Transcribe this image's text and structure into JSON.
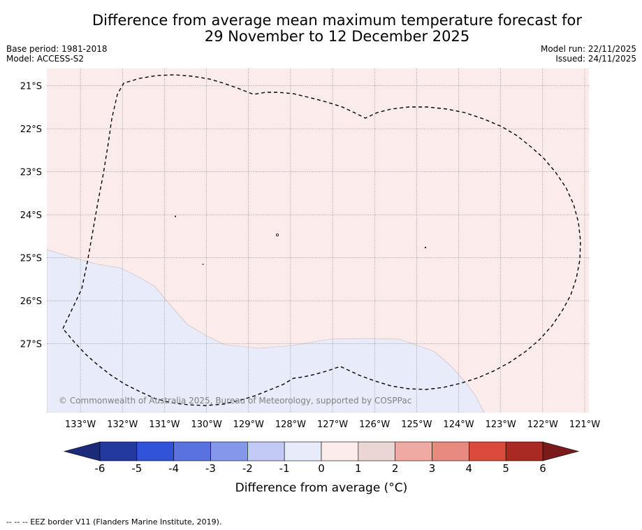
{
  "title": {
    "line1": "Difference from average mean maximum temperature forecast for",
    "line2": "29 November to 12 December 2025"
  },
  "meta": {
    "base_period": "Base period: 1981-2018",
    "model": "Model: ACCESS-S2",
    "model_run": "Model run: 22/11/2025",
    "issued": "Issued: 24/11/2025"
  },
  "map": {
    "lon_labels": [
      "133°W",
      "132°W",
      "131°W",
      "130°W",
      "129°W",
      "128°W",
      "127°W",
      "126°W",
      "125°W",
      "124°W",
      "123°W",
      "122°W",
      "121°W"
    ],
    "lat_labels": [
      "21°S",
      "22°S",
      "23°S",
      "24°S",
      "25°S",
      "26°S",
      "27°S"
    ],
    "lon_range": [
      -133.8,
      -120.9
    ],
    "lat_range": [
      -28.6,
      -20.6
    ],
    "copyright": "© Commonwealth of Australia 2025, Bureau of Meteorology, supported by COSPPac",
    "colors": {
      "warm_fill": "#fbeceb",
      "cool_fill": "#e8ebfa",
      "graticule": "#555555",
      "eez_line": "#000000"
    }
  },
  "colorbar": {
    "title": "Difference from average (°C)",
    "ticks": [
      "-6",
      "-5",
      "-4",
      "-3",
      "-2",
      "-1",
      "0",
      "1",
      "2",
      "3",
      "4",
      "5",
      "6"
    ],
    "colors": [
      "#23399f",
      "#3052d9",
      "#5a72e0",
      "#8597ea",
      "#c2c9f4",
      "#e8ebfa",
      "#fbeceb",
      "#ebd6d4",
      "#efaaa4",
      "#e88a80",
      "#dc4a3c",
      "#a92a22"
    ],
    "under_color": "#1c2a7a",
    "over_color": "#7a1a1a"
  },
  "footer": {
    "legend": "-- -- -- EEZ border V11 (Flanders Marine Institute, 2019)."
  }
}
